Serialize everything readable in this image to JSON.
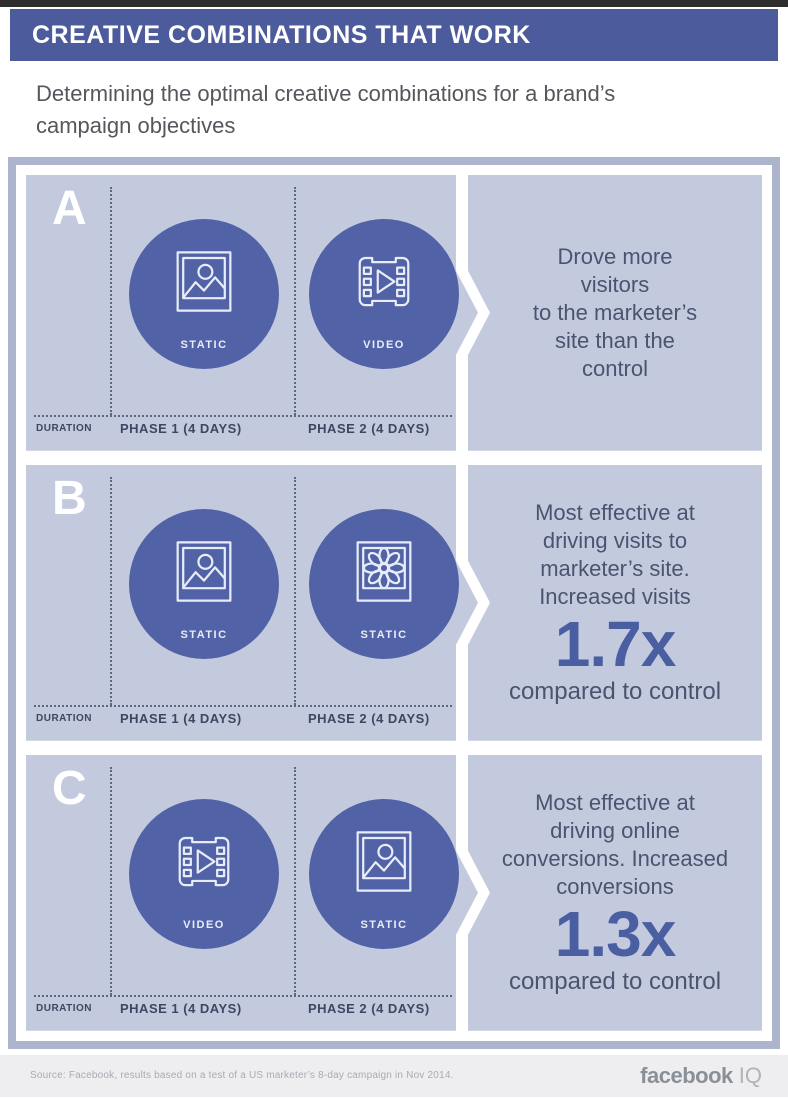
{
  "header": {
    "title": "CREATIVE COMBINATIONS THAT WORK",
    "subtitle": "Determining the optimal creative combinations for a brand’s\ncampaign objectives"
  },
  "rows": [
    {
      "letter": "A",
      "duration_label": "DURATION",
      "phases": [
        {
          "icon": "photo-icon",
          "label": "STATIC",
          "duration": "PHASE 1 (4 DAYS)"
        },
        {
          "icon": "video-icon",
          "label": "VIDEO",
          "duration": "PHASE 2 (4 DAYS)"
        }
      ],
      "result": {
        "text": "Drove more\nvisitors\nto the marketer’s\nsite than the\ncontrol",
        "metric": "",
        "suffix": ""
      }
    },
    {
      "letter": "B",
      "duration_label": "DURATION",
      "phases": [
        {
          "icon": "photo-icon",
          "label": "STATIC",
          "duration": "PHASE 1 (4 DAYS)"
        },
        {
          "icon": "flower-icon",
          "label": "STATIC",
          "duration": "PHASE 2 (4 DAYS)"
        }
      ],
      "result": {
        "text": "Most effective at\ndriving visits to\nmarketer’s site.\nIncreased visits",
        "metric": "1.7x",
        "suffix": "compared to control"
      }
    },
    {
      "letter": "C",
      "duration_label": "DURATION",
      "phases": [
        {
          "icon": "video-icon",
          "label": "VIDEO",
          "duration": "PHASE 1 (4 DAYS)"
        },
        {
          "icon": "photo-icon",
          "label": "STATIC",
          "duration": "PHASE 2 (4 DAYS)"
        }
      ],
      "result": {
        "text": "Most effective at\ndriving online\nconversions. Increased\nconversions",
        "metric": "1.3x",
        "suffix": "compared to control"
      }
    }
  ],
  "footer": {
    "source": "Source:  Facebook, results based on a test of a US marketer’s 8-day campaign in Nov 2014.",
    "brand_bold": "facebook",
    "brand_light": "IQ"
  },
  "colors": {
    "header-bar": "#4c5b9b",
    "panel-bg": "#c4cade",
    "circle-bg": "#5163a6",
    "container-border": "#acb4ce",
    "metric-blue": "#4a5ea2",
    "slate-text": "#4a5470",
    "footer-bg": "#eeeef1"
  }
}
